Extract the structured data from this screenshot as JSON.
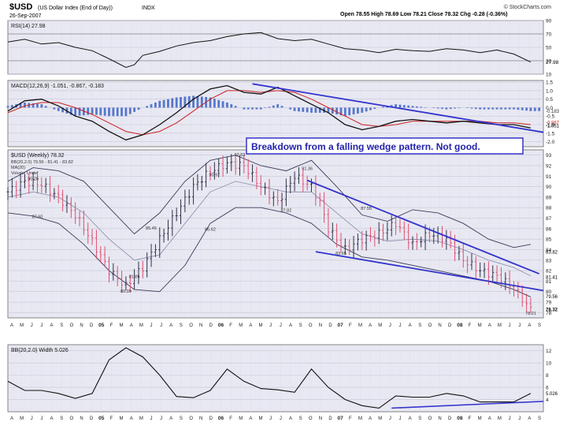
{
  "header": {
    "title": "$USD",
    "subtitle": "(US Dollar Index (End of Day))",
    "exchange": "INDX",
    "date": "26-Sep-2007",
    "stats": "Open 78.55  High 78.69  Low 78.21  Close 78.32  Chg -0.28 (-0.36%)",
    "brand": "© StockCharts.com"
  },
  "colors": {
    "panel_bg": "#E8E8F2",
    "grid": "#C8C8D8",
    "price_down": "#E05070",
    "price_up": "#303048",
    "bollinger": "#3A3A5A",
    "trendline": "#3333CC",
    "macd_hist": "#5577CC",
    "signal_line": "#CC2222",
    "annotation_border": "#3333CC",
    "annotation_text": "#2222AA"
  },
  "annotation": "Breakdown from a falling wedge pattern. Not good.",
  "chart_data": [
    {
      "type": "line",
      "panel": "rsi",
      "title": "RSI(14) 27.98",
      "x_range": [
        0,
        127
      ],
      "ylim": [
        10,
        90
      ],
      "y_ticks": [
        "90",
        "70",
        "50",
        "30",
        "10"
      ],
      "series": [
        {
          "name": "RSI(14)",
          "x": [
            0,
            4,
            8,
            12,
            16,
            20,
            24,
            28,
            30,
            32,
            36,
            40,
            44,
            48,
            52,
            56,
            60,
            64,
            68,
            72,
            76,
            80,
            84,
            88,
            92,
            96,
            100,
            104,
            108,
            112,
            116,
            120,
            124
          ],
          "y": [
            58,
            62,
            55,
            57,
            50,
            45,
            33,
            20,
            24,
            38,
            44,
            52,
            57,
            60,
            66,
            70,
            72,
            63,
            60,
            62,
            55,
            48,
            46,
            42,
            47,
            45,
            44,
            48,
            46,
            42,
            46,
            40,
            28
          ]
        }
      ],
      "value_label": "27.98"
    },
    {
      "type": "line",
      "panel": "macd",
      "title": "MACD(12,26,9) -1.051, -0.867, -0.183",
      "x_range": [
        0,
        127
      ],
      "ylim": [
        -2.3,
        1.6
      ],
      "y_ticks": [
        "1.5",
        "1.0",
        "0.5",
        "0.0",
        "-0.5",
        "-1.0",
        "-1.5",
        "-2.0"
      ],
      "series": [
        {
          "name": "MACD",
          "x": [
            0,
            4,
            8,
            12,
            16,
            20,
            24,
            28,
            32,
            36,
            40,
            44,
            48,
            52,
            56,
            60,
            64,
            68,
            72,
            76,
            80,
            84,
            88,
            92,
            96,
            100,
            104,
            108,
            112,
            116,
            120,
            124
          ],
          "y": [
            -0.2,
            0.4,
            0.5,
            0.1,
            -0.5,
            -0.8,
            -1.4,
            -1.9,
            -1.6,
            -1.0,
            -0.3,
            0.5,
            1.1,
            1.3,
            0.9,
            0.8,
            1.2,
            0.7,
            0.2,
            -0.3,
            -1.0,
            -1.3,
            -1.1,
            -0.8,
            -0.7,
            -0.8,
            -0.9,
            -0.8,
            -0.9,
            -1.0,
            -1.0,
            -1.2
          ]
        },
        {
          "name": "Signal",
          "x": [
            0,
            4,
            8,
            12,
            16,
            20,
            24,
            28,
            32,
            36,
            40,
            44,
            48,
            52,
            56,
            60,
            64,
            68,
            72,
            76,
            80,
            84,
            88,
            92,
            96,
            100,
            104,
            108,
            112,
            116,
            120,
            124
          ],
          "y": [
            -0.3,
            0.1,
            0.3,
            0.3,
            0.0,
            -0.4,
            -0.9,
            -1.4,
            -1.6,
            -1.4,
            -0.9,
            -0.2,
            0.5,
            1.0,
            1.0,
            0.9,
            1.0,
            0.9,
            0.5,
            0.0,
            -0.5,
            -1.0,
            -1.1,
            -1.0,
            -0.8,
            -0.8,
            -0.8,
            -0.8,
            -0.8,
            -0.9,
            -0.9,
            -1.0
          ]
        }
      ],
      "histogram": {
        "x": [
          0,
          4,
          8,
          12,
          16,
          20,
          24,
          28,
          32,
          36,
          40,
          44,
          48,
          52,
          56,
          60,
          64,
          68,
          72,
          76,
          80,
          84,
          88,
          92,
          96,
          100,
          104,
          108,
          112,
          116,
          120,
          124
        ],
        "y": [
          0.1,
          0.3,
          0.2,
          -0.2,
          -0.5,
          -0.4,
          -0.5,
          -0.5,
          0.0,
          0.4,
          0.6,
          0.7,
          0.6,
          0.3,
          -0.1,
          -0.1,
          0.2,
          -0.2,
          -0.3,
          -0.3,
          -0.5,
          -0.3,
          0.0,
          0.2,
          0.1,
          0.0,
          -0.1,
          0.0,
          -0.1,
          -0.1,
          -0.1,
          -0.2
        ]
      },
      "trendline": {
        "x": [
          58,
          127
        ],
        "y": [
          1.4,
          -1.45
        ]
      },
      "right_labels": [
        "-0.183",
        "-0.867",
        "-1.051"
      ]
    },
    {
      "type": "line",
      "panel": "price",
      "title": "$USD (Weekly) 78.32",
      "legend": [
        "BB(20,2.0) 79.56 - 81.41 - 83.82",
        "MA(20)",
        "Volume Undef"
      ],
      "x_range": [
        0,
        127
      ],
      "ylim": [
        77.5,
        93.5
      ],
      "y_ticks": [
        "93",
        "92",
        "91",
        "90",
        "89",
        "88",
        "87",
        "86",
        "85",
        "84",
        "83",
        "82",
        "81",
        "80",
        "79",
        "78"
      ],
      "series": [
        {
          "name": "Close",
          "x": [
            0,
            4,
            8,
            12,
            16,
            20,
            24,
            28,
            30,
            32,
            36,
            40,
            44,
            48,
            52,
            56,
            60,
            64,
            68,
            72,
            74,
            76,
            80,
            84,
            88,
            92,
            96,
            100,
            104,
            108,
            112,
            116,
            120,
            124
          ],
          "y": [
            89.5,
            90.5,
            90.2,
            89.0,
            87.3,
            84.8,
            82.0,
            80.5,
            81.5,
            82.3,
            85.0,
            87.5,
            90.0,
            91.5,
            92.2,
            92.0,
            90.0,
            88.5,
            91.0,
            90.0,
            88.5,
            86.0,
            84.0,
            85.0,
            85.5,
            86.5,
            84.5,
            85.5,
            85.0,
            83.0,
            82.0,
            81.5,
            80.3,
            78.3
          ]
        }
      ],
      "bands": {
        "x": [
          0,
          6,
          12,
          18,
          24,
          30,
          36,
          42,
          48,
          54,
          60,
          66,
          72,
          78,
          84,
          90,
          96,
          102,
          108,
          114,
          120,
          124
        ],
        "upper": [
          90.5,
          91.8,
          91.5,
          90.5,
          88.0,
          85.5,
          87.5,
          90.5,
          92.5,
          93.0,
          92.0,
          91.5,
          92.5,
          90.0,
          87.3,
          86.7,
          87.8,
          87.5,
          86.5,
          85.0,
          84.2,
          84.5
        ],
        "middle": [
          89.0,
          89.5,
          89.0,
          87.5,
          85.0,
          83.0,
          83.5,
          86.5,
          89.5,
          90.5,
          90.0,
          89.5,
          89.5,
          87.5,
          85.5,
          84.8,
          85.0,
          84.8,
          84.0,
          83.0,
          82.3,
          81.5
        ],
        "lower": [
          87.5,
          87.2,
          86.5,
          84.5,
          82.0,
          80.2,
          80.0,
          82.5,
          86.5,
          88.0,
          88.0,
          87.5,
          86.5,
          84.5,
          83.3,
          83.0,
          82.5,
          82.0,
          81.5,
          81.0,
          80.2,
          79.5
        ]
      },
      "wedge_upper": {
        "x": [
          71,
          126
        ],
        "y": [
          90.6,
          81.7
        ]
      },
      "wedge_lower": {
        "x": [
          73,
          127
        ],
        "y": [
          83.8,
          80.1
        ]
      },
      "point_labels": [
        {
          "x": 6,
          "y": 90.6,
          "text": "90.29"
        },
        {
          "x": 7,
          "y": 87.0,
          "text": "87.60"
        },
        {
          "x": 28,
          "y": 79.9,
          "text": "80.39"
        },
        {
          "x": 30,
          "y": 81.3,
          "text": "81.26"
        },
        {
          "x": 34,
          "y": 85.9,
          "text": "85.45"
        },
        {
          "x": 48,
          "y": 85.8,
          "text": "86.62"
        },
        {
          "x": 49,
          "y": 91.0,
          "text": "90.97"
        },
        {
          "x": 55,
          "y": 92.9,
          "text": "92.63"
        },
        {
          "x": 66,
          "y": 87.6,
          "text": "87.82"
        },
        {
          "x": 71,
          "y": 91.6,
          "text": "91.36"
        },
        {
          "x": 79,
          "y": 83.5,
          "text": "83.65"
        },
        {
          "x": 85,
          "y": 87.8,
          "text": "87.55"
        },
        {
          "x": 124,
          "y": 77.8,
          "text": "78.21"
        }
      ],
      "right_labels": [
        "83.82",
        "81.41",
        "79.56",
        "78.32"
      ]
    },
    {
      "type": "line",
      "panel": "bbwidth",
      "title": "BB(20,2.0) Width 5.026",
      "x_range": [
        0,
        127
      ],
      "ylim": [
        2,
        13
      ],
      "y_ticks": [
        "12",
        "10",
        "8",
        "6",
        "4"
      ],
      "series": [
        {
          "name": "BB Width",
          "x": [
            0,
            4,
            8,
            12,
            16,
            20,
            24,
            28,
            32,
            36,
            40,
            44,
            48,
            52,
            56,
            60,
            64,
            68,
            72,
            76,
            80,
            84,
            88,
            92,
            96,
            100,
            104,
            108,
            112,
            116,
            120,
            124
          ],
          "y": [
            7.0,
            5.5,
            5.5,
            5.0,
            4.2,
            5.0,
            10.5,
            12.5,
            11.0,
            8.0,
            4.5,
            4.3,
            5.5,
            9.0,
            7.0,
            5.8,
            5.6,
            5.2,
            9.0,
            6.0,
            4.0,
            3.0,
            2.6,
            4.6,
            4.4,
            4.4,
            5.0,
            4.6,
            3.6,
            3.6,
            3.6,
            5.0
          ]
        }
      ],
      "trendline": {
        "x": [
          91,
          127
        ],
        "y": [
          2.6,
          3.7
        ]
      },
      "right_label": "5.026"
    }
  ],
  "x_axis": {
    "labels": [
      "A",
      "M",
      "J",
      "J",
      "A",
      "S",
      "O",
      "N",
      "D",
      "05",
      "F",
      "M",
      "A",
      "M",
      "J",
      "J",
      "A",
      "S",
      "O",
      "N",
      "D",
      "06",
      "F",
      "M",
      "A",
      "M",
      "J",
      "J",
      "A",
      "S",
      "O",
      "N",
      "D",
      "07",
      "F",
      "M",
      "A",
      "M",
      "J",
      "J",
      "A",
      "S",
      "O",
      "N",
      "D",
      "08",
      "F",
      "M",
      "A",
      "M",
      "J",
      "J",
      "A",
      "S"
    ],
    "bold_years": [
      "05",
      "06",
      "07",
      "08"
    ]
  }
}
